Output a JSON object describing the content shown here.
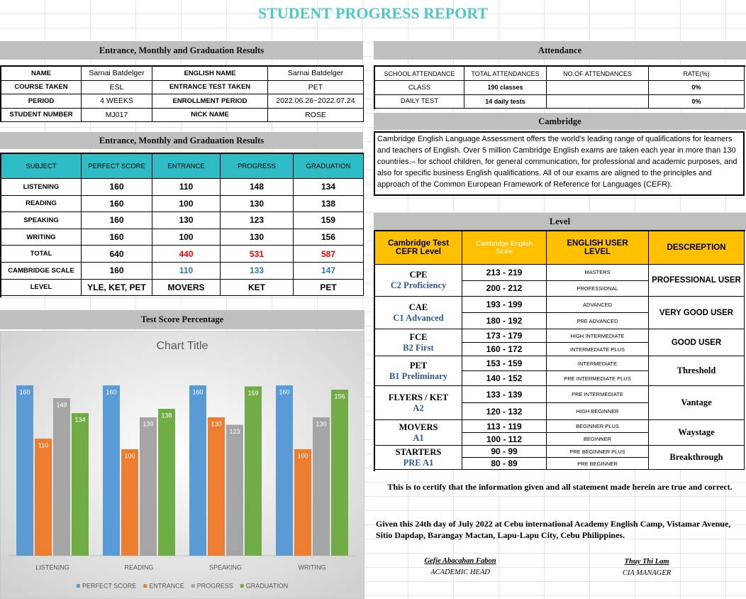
{
  "title": "STUDENT PROGRESS REPORT",
  "info": {
    "header": "Entrance, Monthly and Graduation Results",
    "rows": [
      [
        "NAME",
        "Sarnai Batdelger",
        "ENGLISH NAME",
        "Sarnai Batdelger"
      ],
      [
        "COURSE TAKEN",
        "ESL",
        "ENTRANCE TEST TAKEN",
        "PET"
      ],
      [
        "PERIOD",
        "4 WEEKS",
        "ENROLLMENT PERIOD",
        "2022.06.26~2022.07.24"
      ],
      [
        "STUDENT NUMBER",
        "MJ017",
        "NICK NAME",
        "ROSE"
      ]
    ]
  },
  "results": {
    "header": "Entrance, Monthly and Graduation Results",
    "columns": [
      "SUBJECT",
      "PERFECT SCORE",
      "ENTRANCE",
      "PROGRESS",
      "GRADUATION"
    ],
    "rows": [
      {
        "cells": [
          "LISTENING",
          160,
          110,
          148,
          134
        ]
      },
      {
        "cells": [
          "READING",
          160,
          100,
          130,
          138
        ]
      },
      {
        "cells": [
          "SPEAKING",
          160,
          130,
          123,
          159
        ]
      },
      {
        "cells": [
          "WRITING",
          160,
          100,
          130,
          156
        ]
      },
      {
        "cells": [
          "TOTAL",
          640,
          440,
          531,
          587
        ],
        "color": "#ff0000"
      },
      {
        "cells": [
          "CAMBRIDGE SCALE",
          160,
          110,
          133,
          147
        ],
        "color": "#2e75b6"
      },
      {
        "cells": [
          "LEVEL",
          "YLE, KET, PET",
          "MOVERS",
          "KET",
          "PET"
        ]
      }
    ]
  },
  "attendance": {
    "header": "Attendance",
    "columns": [
      "SCHOOL ATTENDANCE",
      "TOTAL ATTENDANCES",
      "NO.OF ATTENDANCES",
      "RATE(%)"
    ],
    "rows": [
      [
        "CLASS",
        "190 classes",
        null,
        "0%"
      ],
      [
        "DAILY TEST",
        "14 daily tests",
        null,
        "0%"
      ]
    ]
  },
  "cambridge": {
    "header": "Cambridge",
    "text": "Cambridge English Language Assessment offers the world’s leading range of qualifications for learners and teachers of English. Over 5 million Cambridge English exams are taken each year in more than 130 countries.– for school children, for general communication, for professional and academic purposes, and also for specific business English qualifications. All of our exams are aligned to the principles and approach of the Common European Framework of Reference for Languages (CEFR)."
  },
  "level": {
    "header": "Level",
    "columns": [
      "Cambridge Test CEFR Level",
      "Cambridge English Scale",
      "ENGLISH USER LEVEL",
      "DESCREPTION"
    ],
    "groups": [
      {
        "name": "CPE",
        "sub": "C2 Proficiency",
        "description": "PROFESSIONAL USER",
        "rows": [
          [
            "213 - 219",
            "MASTERS"
          ],
          [
            "200 - 212",
            "PROFESSIONAL"
          ]
        ]
      },
      {
        "name": "CAE",
        "sub": "C1 Advanced",
        "description": "VERY GOOD USER",
        "rows": [
          [
            "193 - 199",
            "ADVANCED"
          ],
          [
            "180 - 192",
            "PRE ADVANCED"
          ]
        ]
      },
      {
        "name": "FCE",
        "sub": "B2 First",
        "description": "GOOD USER",
        "rows": [
          [
            "173 - 179",
            "HIGH INTERMEDIATE"
          ],
          [
            "160 - 172",
            "INTERMEDIATE PLUS"
          ]
        ]
      },
      {
        "name": "PET",
        "sub": "B1 Preliminary",
        "description": "Threshold",
        "rows": [
          [
            "153 - 159",
            "INTERMEDIATE"
          ],
          [
            "140 - 152",
            "PRE INTERMEDIATE PLUS"
          ]
        ]
      },
      {
        "name": "FLYERS / KET",
        "sub": "A2",
        "description": "Vantage",
        "rows": [
          [
            "133 - 139",
            "PRE INTERMEDIATE"
          ],
          [
            "120 - 132",
            "HIGH BEGINNER"
          ]
        ]
      },
      {
        "name": "MOVERS",
        "sub": "A1",
        "description": "Waystage",
        "rows": [
          [
            "113 - 119",
            "BEGINNER PLUS"
          ],
          [
            "100 - 112",
            "BEGINNER"
          ]
        ]
      },
      {
        "name": "STARTERS",
        "sub": "PRE A1",
        "description": "Breakthrough",
        "rows": [
          [
            "90 - 99",
            "PRE BEGINNER PLUS"
          ],
          [
            "80 - 89",
            "PRE BEGINNER"
          ]
        ]
      }
    ]
  },
  "certify": "This is to certify that the information given and all statement made herein are true and correct.",
  "given": "Given this 24th day of  July 2022 at Cebu international Academy English Camp, Vistamar Avenue, Sitio Dapdap, Barangay Mactan, Lapu-Lapu City, Cebu Philippines.",
  "signatures": [
    {
      "name": "Gefie Abacahan Fabon",
      "role": "ACADEMIC HEAD"
    },
    {
      "name": "Thuy Thi Lam",
      "role": "CIA MANAGER"
    }
  ],
  "chart_data": {
    "type": "bar",
    "header": "Test Score Percentage",
    "title": "Chart Title",
    "categories": [
      "LISTENING",
      "READING",
      "SPEAKING",
      "WRITING"
    ],
    "series": [
      {
        "name": "PERFECT SCORE",
        "color": "#5b9bd5",
        "values": [
          160,
          160,
          160,
          160
        ]
      },
      {
        "name": "ENTRANCE",
        "color": "#ed7d31",
        "values": [
          110,
          100,
          130,
          100
        ]
      },
      {
        "name": "PROGRESS",
        "color": "#a5a5a5",
        "values": [
          148,
          130,
          123,
          130
        ]
      },
      {
        "name": "GRADUATION",
        "color": "#70ad47",
        "values": [
          134,
          138,
          159,
          156
        ]
      }
    ],
    "ylim": [
      0,
      180
    ],
    "legend": "bottom"
  }
}
